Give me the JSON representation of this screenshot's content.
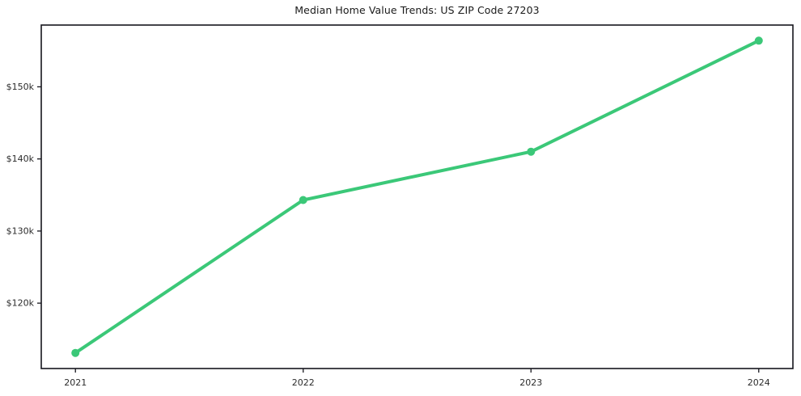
{
  "page": {
    "background": "#ffffff"
  },
  "chart_data": {
    "type": "line",
    "title": "Median Home Value Trends: US ZIP Code 27203",
    "x": [
      2021,
      2022,
      2023,
      2024
    ],
    "x_tick_labels": [
      "2021",
      "2022",
      "2023",
      "2024"
    ],
    "values": [
      113100,
      134300,
      141000,
      156400
    ],
    "y_ticks": [
      120000,
      130000,
      140000,
      150000
    ],
    "y_tick_labels": [
      "$120k",
      "$130k",
      "$140k",
      "$150k"
    ],
    "xlabel": "",
    "ylabel": "",
    "xlim": [
      2020.85,
      2024.15
    ],
    "ylim": [
      110935,
      158565
    ],
    "grid": false,
    "legend": "none",
    "line_color": "#3bc878",
    "marker_color": "#3bc878",
    "axis_color": "#16161d",
    "tick_label_color": "#2b2b2b",
    "title_color": "#1a1a1a"
  }
}
